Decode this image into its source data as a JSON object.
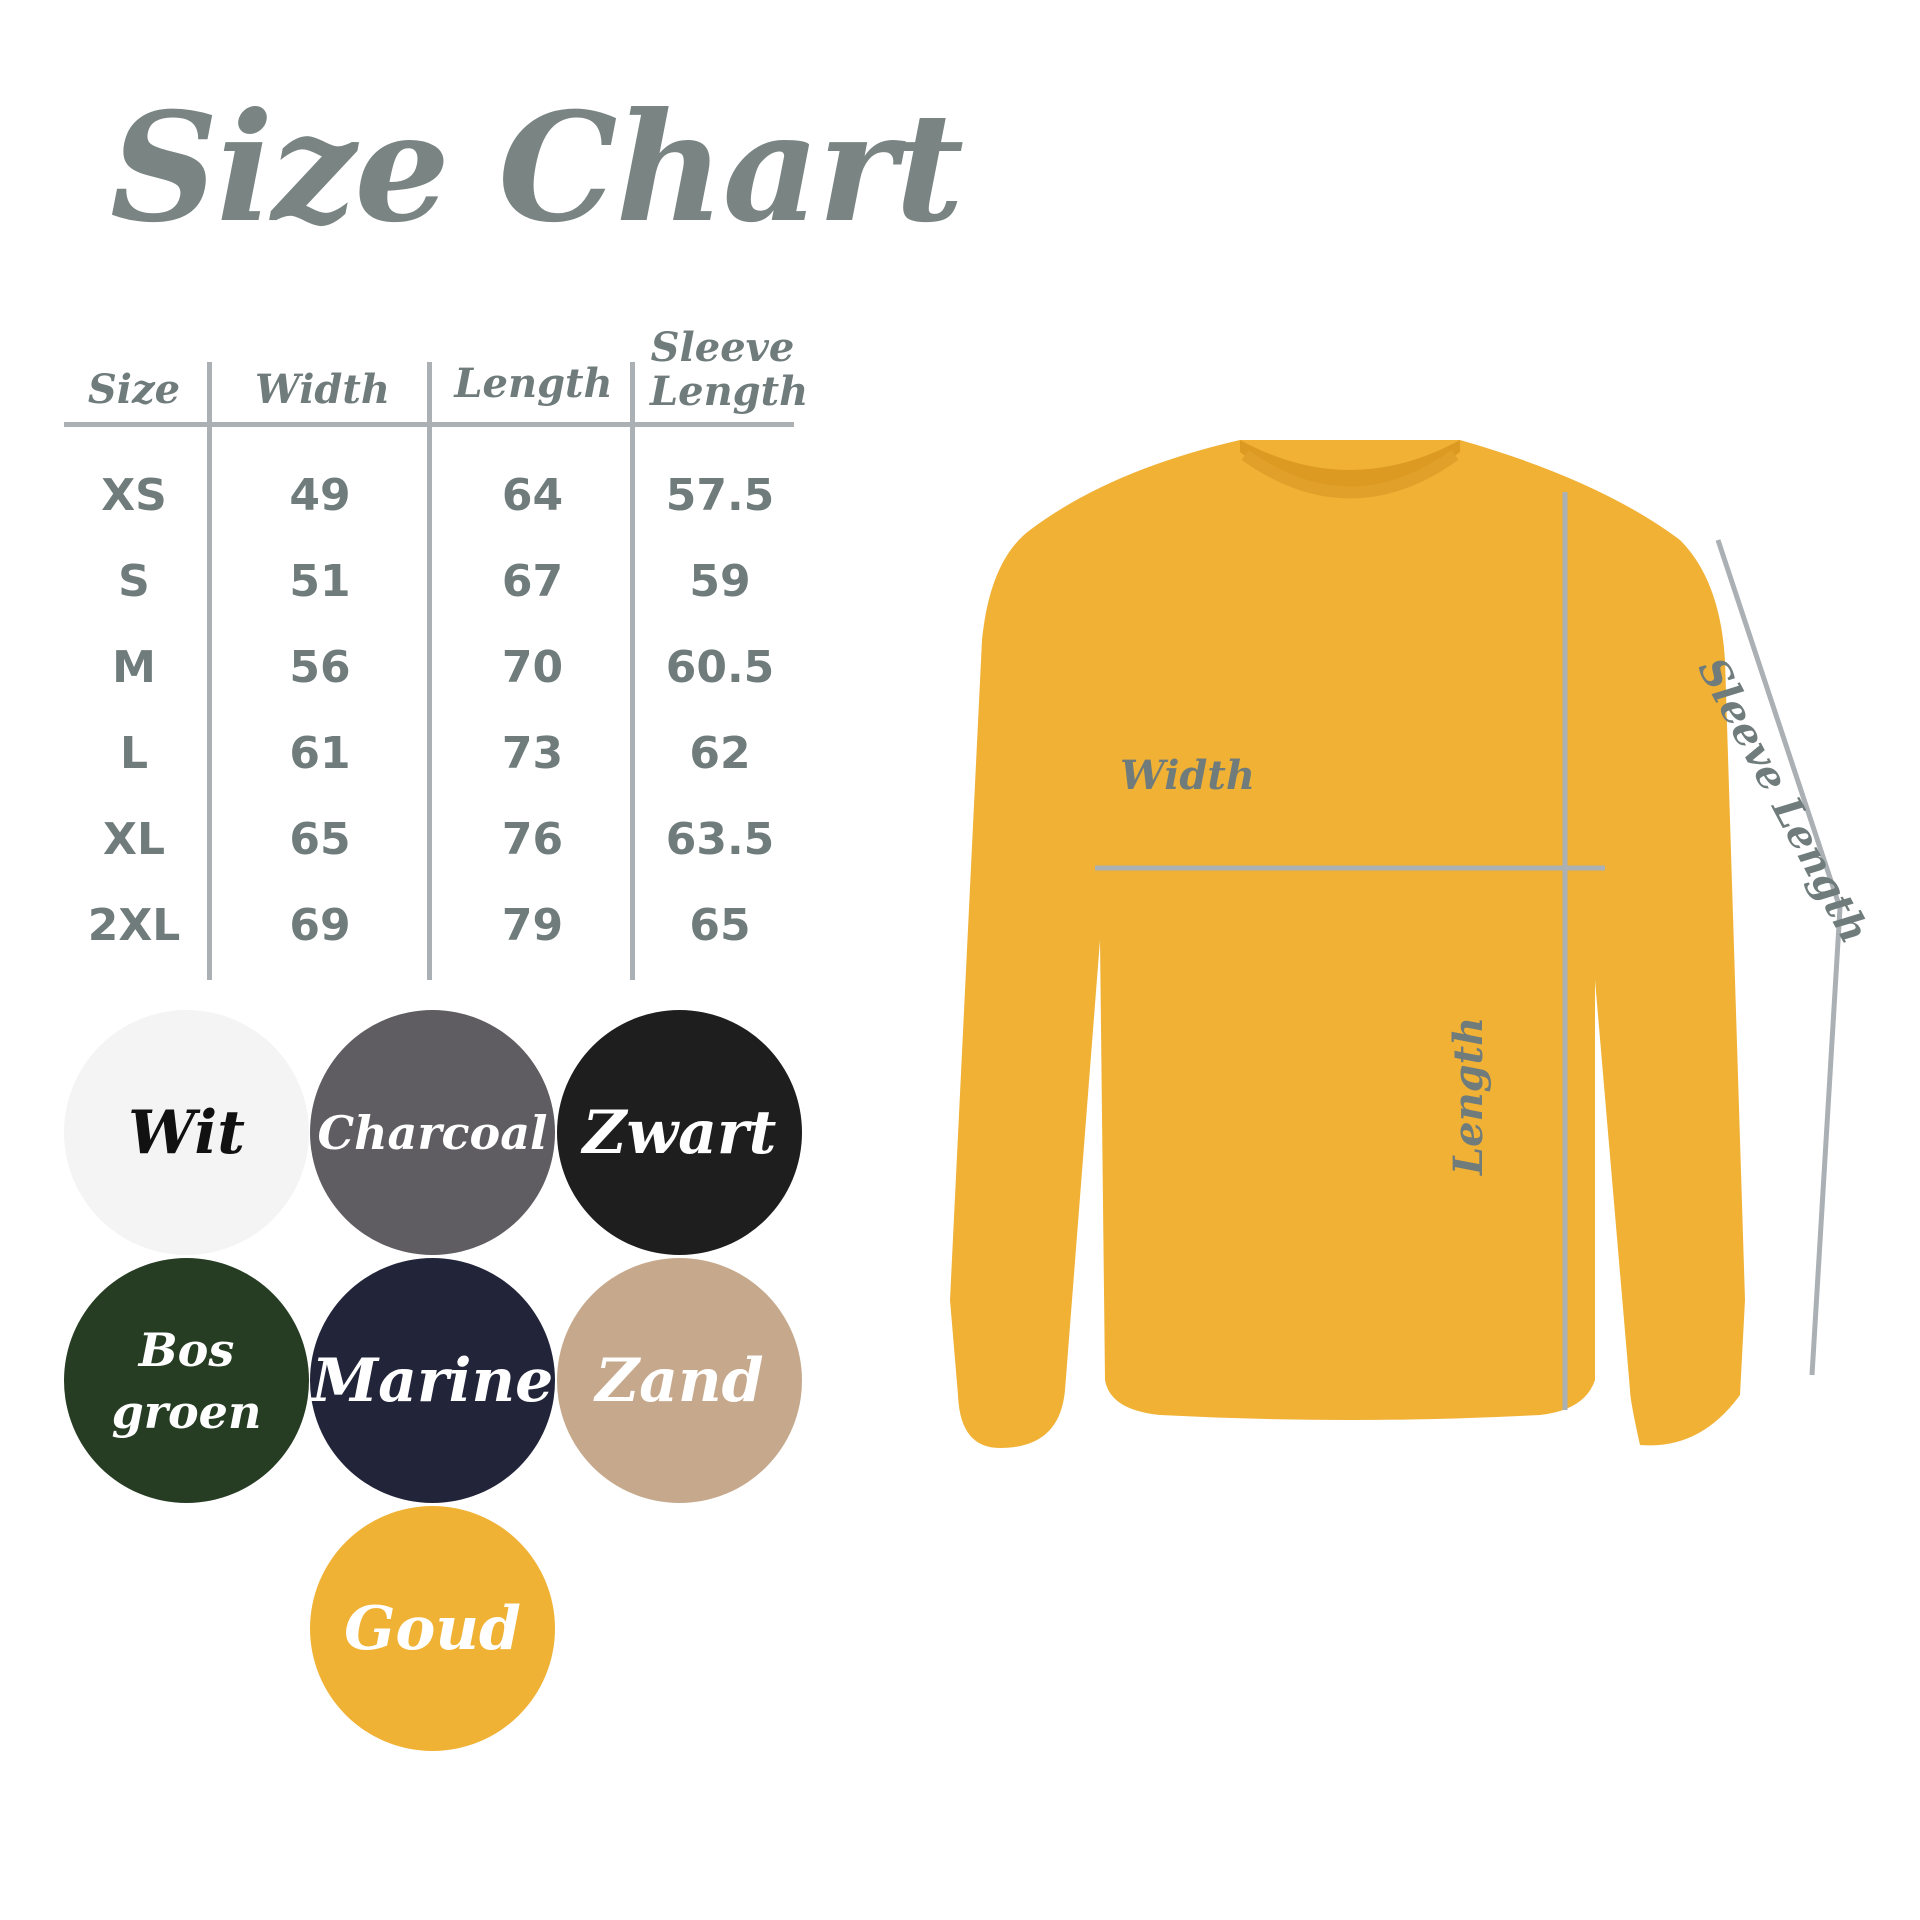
{
  "title": "Size Chart",
  "table": {
    "headers": [
      "Size",
      "Width",
      "Length",
      "Sleeve Length"
    ],
    "rows": [
      [
        "XS",
        "49",
        "64",
        "57.5"
      ],
      [
        "S",
        "51",
        "67",
        "59"
      ],
      [
        "M",
        "56",
        "70",
        "60.5"
      ],
      [
        "L",
        "61",
        "73",
        "62"
      ],
      [
        "XL",
        "65",
        "76",
        "63.5"
      ],
      [
        "2XL",
        "69",
        "79",
        "65"
      ]
    ]
  },
  "colors": [
    {
      "label": "Wit",
      "bg": "#f4f4f4",
      "fg": "#111111"
    },
    {
      "label": "Charcoal",
      "bg": "#5f5d62",
      "fg": "#ffffff"
    },
    {
      "label": "Zwart",
      "bg": "#1e1e1e",
      "fg": "#ffffff"
    },
    {
      "label": "Bos groen",
      "bg": "#263d24",
      "fg": "#ffffff"
    },
    {
      "label": "Marine",
      "bg": "#22243a",
      "fg": "#ffffff"
    },
    {
      "label": "Zand",
      "bg": "#c6a98c",
      "fg": "#ffffff"
    },
    {
      "label": "Goud",
      "bg": "#f0b235",
      "fg": "#ffffff"
    }
  ],
  "diagram": {
    "width_label": "Width",
    "length_label": "Length",
    "sleeve_label": "Sleeve Length",
    "garment_color": "#f0b135",
    "line_color": "#aab0b3",
    "text_color": "#6f7c7b"
  }
}
